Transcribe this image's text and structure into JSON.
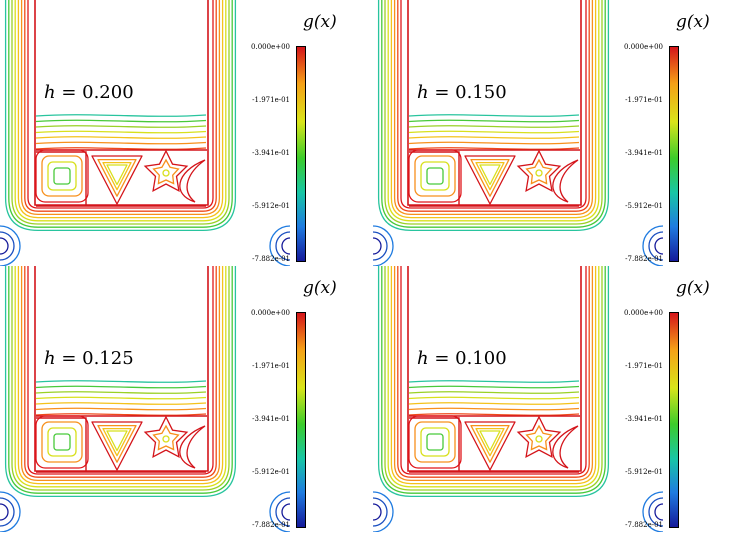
{
  "panels": [
    {
      "h_label": "h = ",
      "h_value": "0.200"
    },
    {
      "h_label": "h = ",
      "h_value": "0.150"
    },
    {
      "h_label": "h = ",
      "h_value": "0.125"
    },
    {
      "h_label": "h = ",
      "h_value": "0.100"
    }
  ],
  "colorbar": {
    "title": "g(x)",
    "ticks": [
      "0.000e+00",
      "-1.971e-01",
      "-3.941e-01",
      "-5.912e-01",
      "-7.882e-01"
    ],
    "colors": [
      "#d4141a",
      "#f5a017",
      "#d9e51a",
      "#3ccc2b",
      "#18c6a5",
      "#1f7be0",
      "#151a9a"
    ]
  }
}
